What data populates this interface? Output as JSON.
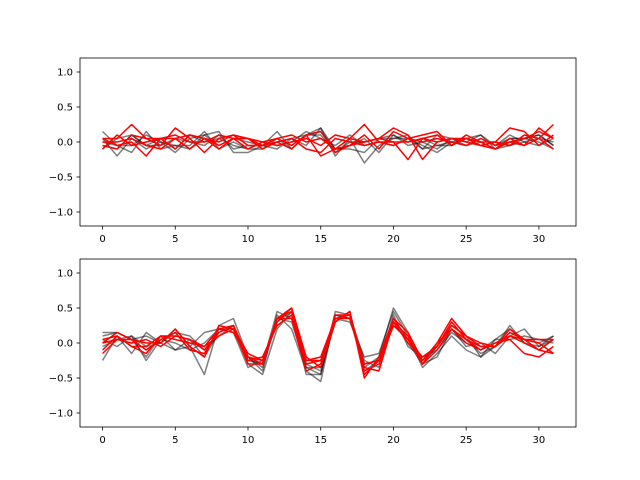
{
  "chart_data": [
    {
      "type": "line",
      "x": [
        0,
        1,
        2,
        3,
        4,
        5,
        6,
        7,
        8,
        9,
        10,
        11,
        12,
        13,
        14,
        15,
        16,
        17,
        18,
        19,
        20,
        21,
        22,
        23,
        24,
        25,
        26,
        27,
        28,
        29,
        30,
        31
      ],
      "xlim": [
        -1.55,
        32.55
      ],
      "ylim": [
        -1.2,
        1.2
      ],
      "xticks": [
        0,
        5,
        10,
        15,
        20,
        25,
        30
      ],
      "yticks": [
        -1.0,
        -0.5,
        0.0,
        0.5,
        1.0
      ],
      "xtick_labels": [
        "0",
        "5",
        "10",
        "15",
        "20",
        "25",
        "30"
      ],
      "ytick_labels": [
        "−1.0",
        "−0.5",
        "0.0",
        "0.5",
        "1.0"
      ],
      "grid": false,
      "series": [
        {
          "color": "#000000",
          "opacity": 0.5,
          "values": [
            0.15,
            -0.05,
            -0.15,
            0.15,
            -0.1,
            -0.05,
            -0.1,
            0.1,
            0.15,
            -0.15,
            -0.15,
            -0.05,
            0.15,
            -0.1,
            0.1,
            0.2,
            -0.2,
            0.05,
            -0.3,
            -0.05,
            0.05,
            0.05,
            -0.05,
            -0.15,
            0.0,
            0.05,
            0.1,
            -0.1,
            -0.05,
            0.0,
            0.05,
            0.0
          ]
        },
        {
          "color": "#000000",
          "opacity": 0.5,
          "values": [
            0.05,
            -0.2,
            0.05,
            -0.1,
            0.0,
            -0.15,
            0.05,
            0.1,
            -0.05,
            0.05,
            0.0,
            -0.05,
            -0.1,
            0.05,
            0.1,
            0.15,
            -0.1,
            -0.05,
            0.05,
            -0.15,
            0.1,
            0.0,
            0.05,
            -0.05,
            0.0,
            -0.05,
            0.05,
            -0.05,
            0.1,
            0.0,
            -0.05,
            0.05
          ]
        },
        {
          "color": "#000000",
          "opacity": 0.5,
          "values": [
            -0.05,
            -0.1,
            0.1,
            -0.05,
            0.05,
            -0.1,
            0.1,
            0.0,
            0.05,
            -0.05,
            -0.1,
            0.0,
            -0.05,
            0.0,
            0.15,
            0.05,
            -0.05,
            0.1,
            -0.05,
            0.0,
            -0.05,
            0.05,
            -0.1,
            0.1,
            0.05,
            -0.05,
            0.0,
            -0.1,
            0.05,
            0.05,
            0.0,
            -0.1
          ]
        },
        {
          "color": "#000000",
          "opacity": 0.5,
          "values": [
            0.0,
            -0.05,
            -0.05,
            0.1,
            0.0,
            -0.05,
            -0.05,
            0.15,
            -0.1,
            0.0,
            -0.1,
            -0.1,
            0.05,
            -0.1,
            0.1,
            0.1,
            -0.15,
            0.0,
            0.0,
            0.05,
            0.05,
            0.1,
            -0.1,
            -0.05,
            -0.05,
            0.05,
            -0.05,
            0.0,
            -0.05,
            0.05,
            0.1,
            -0.05
          ]
        },
        {
          "color": "#000000",
          "opacity": 0.5,
          "values": [
            -0.1,
            0.05,
            0.1,
            -0.05,
            -0.05,
            0.05,
            0.0,
            -0.05,
            0.1,
            -0.1,
            -0.05,
            -0.05,
            0.0,
            0.05,
            -0.05,
            0.2,
            -0.1,
            -0.1,
            -0.15,
            0.05,
            0.1,
            -0.05,
            0.0,
            -0.1,
            0.05,
            0.0,
            0.1,
            -0.05,
            0.05,
            0.05,
            0.1,
            -0.05
          ]
        },
        {
          "color": "#ff0000",
          "opacity": 1,
          "values": [
            0.05,
            0.05,
            0.25,
            0.05,
            -0.05,
            0.2,
            0.05,
            -0.15,
            0.05,
            0.1,
            -0.05,
            -0.05,
            0.0,
            -0.1,
            0.1,
            0.15,
            -0.15,
            -0.05,
            0.0,
            0.05,
            0.0,
            -0.25,
            0.05,
            0.0,
            0.05,
            0.0,
            -0.05,
            0.0,
            -0.05,
            0.1,
            0.05,
            0.25
          ]
        },
        {
          "color": "#ff0000",
          "opacity": 1,
          "values": [
            -0.05,
            -0.1,
            0.1,
            0.05,
            0.05,
            -0.1,
            0.1,
            0.05,
            -0.1,
            0.05,
            -0.1,
            0.0,
            -0.05,
            0.0,
            0.05,
            -0.05,
            0.1,
            0.05,
            0.0,
            0.05,
            0.2,
            0.1,
            -0.25,
            0.0,
            0.05,
            0.05,
            0.0,
            0.0,
            0.2,
            0.15,
            -0.05,
            0.1
          ]
        },
        {
          "color": "#ff0000",
          "opacity": 1,
          "values": [
            0.0,
            0.0,
            0.05,
            -0.05,
            -0.1,
            0.05,
            0.1,
            0.05,
            -0.05,
            0.05,
            0.05,
            -0.05,
            0.05,
            -0.05,
            0.1,
            -0.2,
            -0.1,
            0.05,
            0.25,
            0.0,
            -0.05,
            0.05,
            0.1,
            0.15,
            -0.05,
            0.05,
            -0.05,
            -0.1,
            0.05,
            -0.05,
            0.2,
            0.05
          ]
        },
        {
          "color": "#ff0000",
          "opacity": 1,
          "values": [
            -0.1,
            0.1,
            -0.05,
            0.0,
            0.05,
            0.05,
            -0.1,
            0.05,
            0.0,
            0.1,
            0.05,
            -0.1,
            0.0,
            0.05,
            -0.1,
            -0.15,
            0.05,
            0.0,
            -0.05,
            0.0,
            0.0,
            0.0,
            0.05,
            0.1,
            -0.05,
            0.1,
            0.0,
            -0.1,
            0.0,
            -0.05,
            0.05,
            -0.1
          ]
        },
        {
          "color": "#ff0000",
          "opacity": 1,
          "values": [
            0.05,
            -0.05,
            0.0,
            -0.2,
            0.05,
            0.1,
            0.0,
            0.0,
            0.1,
            0.05,
            0.05,
            0.0,
            0.05,
            0.1,
            0.0,
            0.05,
            -0.1,
            -0.05,
            0.1,
            -0.1,
            0.15,
            0.05,
            0.0,
            0.05,
            0.0,
            -0.05,
            0.05,
            -0.05,
            0.0,
            0.05,
            0.15,
            0.05
          ]
        }
      ]
    },
    {
      "type": "line",
      "x": [
        0,
        1,
        2,
        3,
        4,
        5,
        6,
        7,
        8,
        9,
        10,
        11,
        12,
        13,
        14,
        15,
        16,
        17,
        18,
        19,
        20,
        21,
        22,
        23,
        24,
        25,
        26,
        27,
        28,
        29,
        30,
        31
      ],
      "xlim": [
        -1.55,
        32.55
      ],
      "ylim": [
        -1.2,
        1.2
      ],
      "xticks": [
        0,
        5,
        10,
        15,
        20,
        25,
        30
      ],
      "yticks": [
        -1.0,
        -0.5,
        0.0,
        0.5,
        1.0
      ],
      "xtick_labels": [
        "0",
        "5",
        "10",
        "15",
        "20",
        "25",
        "30"
      ],
      "ytick_labels": [
        "−1.0",
        "−0.5",
        "0.0",
        "0.5",
        "1.0"
      ],
      "grid": false,
      "series": [
        {
          "color": "#000000",
          "opacity": 0.5,
          "values": [
            -0.25,
            0.1,
            -0.15,
            0.15,
            0.0,
            0.2,
            -0.05,
            -0.45,
            0.25,
            0.35,
            -0.2,
            -0.4,
            0.4,
            0.2,
            -0.4,
            -0.55,
            0.4,
            0.35,
            -0.35,
            -0.2,
            0.5,
            0.15,
            -0.3,
            -0.2,
            0.2,
            0.05,
            -0.15,
            -0.05,
            0.25,
            0.0,
            -0.1,
            0.05
          ]
        },
        {
          "color": "#000000",
          "opacity": 0.5,
          "values": [
            0.1,
            0.15,
            0.05,
            -0.2,
            0.1,
            -0.1,
            -0.05,
            0.15,
            0.2,
            0.15,
            -0.35,
            -0.25,
            0.3,
            0.45,
            -0.45,
            -0.45,
            0.45,
            0.4,
            -0.25,
            -0.35,
            0.4,
            -0.05,
            -0.2,
            -0.05,
            0.2,
            -0.05,
            0.0,
            -0.15,
            0.1,
            0.2,
            -0.05,
            0.05
          ]
        },
        {
          "color": "#000000",
          "opacity": 0.5,
          "values": [
            0.05,
            -0.05,
            0.1,
            -0.05,
            0.0,
            0.15,
            0.1,
            -0.1,
            0.1,
            0.25,
            -0.25,
            -0.3,
            0.45,
            0.35,
            -0.3,
            -0.4,
            0.3,
            0.45,
            -0.4,
            -0.25,
            0.25,
            0.05,
            -0.2,
            -0.1,
            0.15,
            0.0,
            -0.1,
            0.05,
            0.2,
            0.0,
            -0.05,
            0.1
          ]
        },
        {
          "color": "#000000",
          "opacity": 0.5,
          "values": [
            0.15,
            0.15,
            0.05,
            0.1,
            0.0,
            -0.1,
            0.05,
            -0.2,
            0.15,
            0.25,
            -0.3,
            -0.45,
            0.2,
            0.45,
            -0.35,
            -0.45,
            0.35,
            0.3,
            -0.2,
            -0.15,
            0.45,
            0.1,
            -0.35,
            -0.15,
            0.1,
            -0.1,
            -0.2,
            0.05,
            0.05,
            0.1,
            0.05,
            0.0
          ]
        },
        {
          "color": "#000000",
          "opacity": 0.5,
          "values": [
            -0.05,
            0.05,
            0.1,
            -0.25,
            0.05,
            0.0,
            -0.1,
            0.0,
            0.2,
            0.2,
            -0.2,
            -0.35,
            0.35,
            0.3,
            -0.35,
            -0.35,
            0.4,
            0.35,
            -0.3,
            -0.25,
            0.3,
            0.0,
            -0.3,
            -0.05,
            0.25,
            0.1,
            -0.2,
            -0.05,
            0.15,
            0.05,
            0.0,
            0.1
          ]
        },
        {
          "color": "#ff0000",
          "opacity": 1,
          "values": [
            0.0,
            0.15,
            0.05,
            -0.1,
            0.05,
            0.15,
            -0.1,
            -0.15,
            0.2,
            0.15,
            -0.2,
            -0.3,
            0.3,
            0.5,
            -0.2,
            -0.35,
            0.3,
            0.45,
            -0.5,
            -0.2,
            0.35,
            0.05,
            -0.25,
            0.0,
            0.35,
            0.1,
            -0.05,
            -0.05,
            0.15,
            0.05,
            0.0,
            -0.15
          ]
        },
        {
          "color": "#ff0000",
          "opacity": 1,
          "values": [
            -0.15,
            0.05,
            0.0,
            0.05,
            -0.05,
            0.1,
            0.05,
            -0.1,
            0.15,
            0.25,
            -0.25,
            -0.2,
            0.25,
            0.4,
            -0.3,
            -0.25,
            0.35,
            0.35,
            -0.35,
            -0.4,
            0.3,
            0.1,
            -0.3,
            -0.1,
            0.2,
            0.05,
            -0.1,
            0.0,
            0.1,
            0.0,
            -0.1,
            0.05
          ]
        },
        {
          "color": "#ff0000",
          "opacity": 1,
          "values": [
            0.05,
            0.1,
            -0.05,
            -0.05,
            0.1,
            0.05,
            0.0,
            -0.05,
            0.2,
            0.25,
            -0.2,
            -0.25,
            0.35,
            0.45,
            -0.25,
            -0.2,
            0.35,
            0.4,
            -0.3,
            -0.25,
            0.3,
            0.0,
            -0.2,
            -0.05,
            0.25,
            0.1,
            0.0,
            -0.05,
            0.2,
            0.05,
            0.05,
            0.05
          ]
        },
        {
          "color": "#ff0000",
          "opacity": 1,
          "values": [
            0.0,
            0.05,
            0.05,
            0.0,
            0.0,
            0.2,
            -0.05,
            -0.2,
            0.25,
            0.2,
            -0.3,
            -0.3,
            0.35,
            0.35,
            -0.4,
            -0.3,
            0.4,
            0.4,
            -0.4,
            -0.3,
            0.25,
            0.05,
            -0.3,
            0.0,
            0.2,
            0.0,
            -0.1,
            0.0,
            0.05,
            -0.15,
            -0.2,
            -0.05
          ]
        },
        {
          "color": "#ff0000",
          "opacity": 1,
          "values": [
            -0.1,
            0.1,
            -0.05,
            -0.15,
            0.1,
            0.1,
            0.05,
            -0.05,
            0.1,
            0.2,
            -0.15,
            -0.25,
            0.35,
            0.5,
            -0.25,
            -0.25,
            0.3,
            0.45,
            -0.45,
            -0.25,
            0.35,
            0.15,
            -0.25,
            -0.05,
            0.3,
            0.05,
            -0.05,
            -0.05,
            0.1,
            0.05,
            -0.1,
            -0.15
          ]
        }
      ]
    }
  ]
}
